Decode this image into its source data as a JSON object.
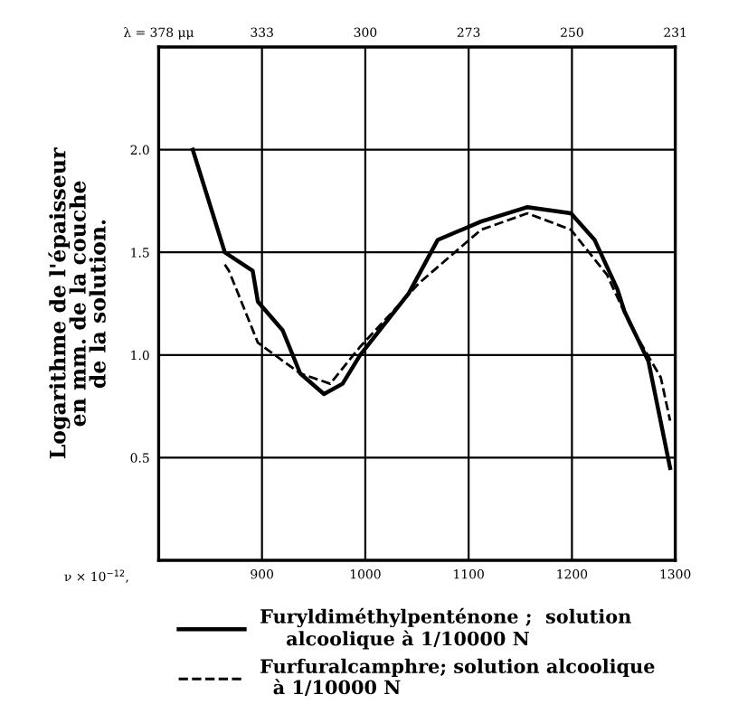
{
  "chart_data": {
    "type": "line",
    "xlabel": "ν × 10$^{−12}$,",
    "ylabel": "Logarithme de l'épaisseur\nen mm. de la couche\nde la solution.",
    "xlim": [
      800,
      1300
    ],
    "xticks": [
      {
        "value": 800,
        "label": null
      },
      900,
      1000,
      1100,
      1200,
      1300
    ],
    "ylim": [
      0,
      2.5
    ],
    "yticks": [
      {
        "value": 0,
        "label": null
      },
      0.5,
      {
        "value": 1,
        "label": "1.0"
      },
      1.5,
      {
        "value": 2,
        "label": "2.0"
      },
      {
        "value": 2.5,
        "label": null
      }
    ],
    "annotations": [
      "λ = 378 μμ",
      "333",
      "300",
      "273",
      "250",
      "231"
    ],
    "grid": true,
    "legend": "bottom",
    "series": [
      {
        "name": "Furyldiméthylpenténone ;  solution\n    alcoolique à 1/10000 N",
        "color": "#000000",
        "line_style": "solid",
        "x": [
          833,
          864,
          891,
          896,
          920,
          937,
          960,
          978,
          995,
          1042,
          1070,
          1112,
          1157,
          1199,
          1222,
          1244,
          1251,
          1274,
          1295
        ],
        "values": [
          2.0,
          1.5,
          1.41,
          1.26,
          1.12,
          0.91,
          0.81,
          0.86,
          1.0,
          1.3,
          1.56,
          1.65,
          1.72,
          1.69,
          1.56,
          1.32,
          1.21,
          0.97,
          0.45
        ]
      },
      {
        "name": "Furfuralcamphre; solution alcoolique\n  à 1/10000 N",
        "color": "#000000",
        "line_style": "dashed",
        "x": [
          864,
          868,
          896,
          937,
          966,
          995,
          1052,
          1112,
          1157,
          1199,
          1234,
          1256,
          1286,
          1295
        ],
        "values": [
          1.44,
          1.41,
          1.06,
          0.91,
          0.86,
          1.04,
          1.35,
          1.61,
          1.69,
          1.61,
          1.39,
          1.15,
          0.89,
          0.68
        ]
      }
    ]
  }
}
